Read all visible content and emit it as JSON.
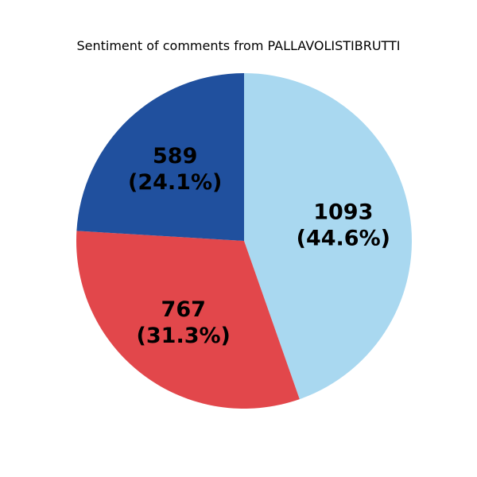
{
  "chart_data": {
    "type": "pie",
    "title": "Sentiment of comments from PALLAVOLISTIBRUTTI",
    "slices": [
      {
        "value": 1093,
        "percent_label": "(44.6%)",
        "color": "#a9d8f0"
      },
      {
        "value": 767,
        "percent_label": "(31.3%)",
        "color": "#e2474b"
      },
      {
        "value": 589,
        "percent_label": "(24.1%)",
        "color": "#20509e"
      }
    ],
    "start_angle_deg": 90,
    "direction": "clockwise"
  }
}
